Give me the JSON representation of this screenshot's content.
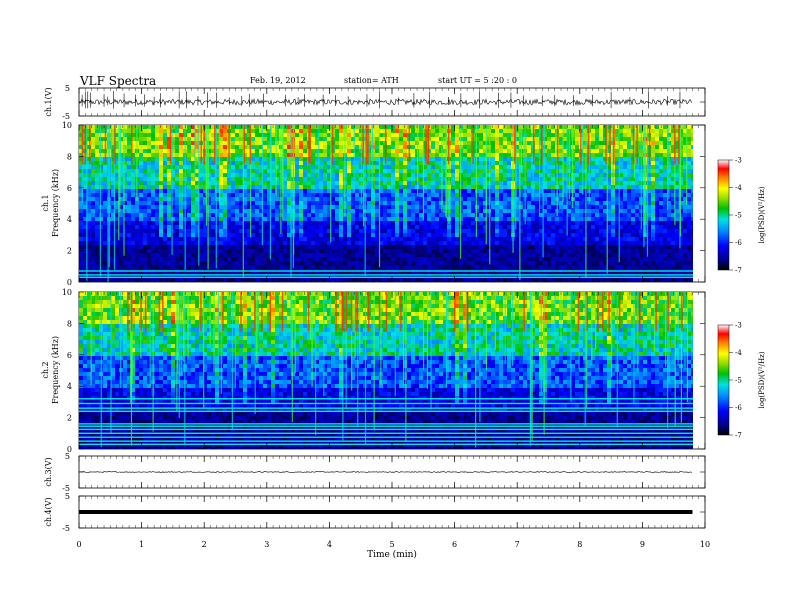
{
  "header": {
    "title": "VLF  Spectra",
    "date": "Feb. 19, 2012",
    "station": "station= ATH",
    "start": "start  UT =   5  :20 : 0"
  },
  "chart_data": [
    {
      "type": "line",
      "name": "waveform-ch1",
      "ylabel": "ch.1(V)",
      "yticks": [
        "5",
        "-5"
      ],
      "ylim": [
        -5,
        5
      ],
      "baseline": 0,
      "color": "#000000",
      "spikes": [
        0.05,
        0.1,
        0.14,
        0.18,
        0.4,
        0.46,
        0.55,
        0.72,
        0.9,
        1.05,
        1.2,
        1.3,
        1.6,
        1.72,
        1.9,
        2.05,
        2.2,
        2.4,
        2.6,
        2.72,
        2.95,
        3.3,
        3.5,
        3.6,
        3.9,
        4.1,
        4.3,
        4.6,
        4.8,
        5.1,
        5.35,
        5.6,
        5.9,
        6.1,
        6.4,
        6.7,
        6.9,
        7.1,
        7.4,
        7.6,
        7.9,
        8.2,
        8.5,
        8.8,
        9.1,
        9.4,
        9.6
      ]
    },
    {
      "type": "heatmap",
      "name": "spectrogram-ch1",
      "ylabel": "ch.1\nFrequency (kHz)",
      "yticks": [
        "0",
        "2",
        "4",
        "6",
        "8",
        "10"
      ],
      "ylim": [
        0,
        10
      ],
      "colorbar_label": "log(PSD)(V²/Hz)",
      "colorbar_ticks": [
        "-3",
        "-4",
        "-5",
        "-6",
        "-7"
      ],
      "colorbar_range": [
        -7,
        -3
      ],
      "lines_khz": [
        0.3,
        0.45,
        0.7
      ]
    },
    {
      "type": "heatmap",
      "name": "spectrogram-ch2",
      "ylabel": "ch.2\nFrequency (kHz)",
      "yticks": [
        "0",
        "2",
        "4",
        "6",
        "8",
        "10"
      ],
      "ylim": [
        0,
        10
      ],
      "colorbar_label": "log(PSD)(V²/Hz)",
      "colorbar_ticks": [
        "-3",
        "-4",
        "-5",
        "-6",
        "-7"
      ],
      "colorbar_range": [
        -7,
        -3
      ],
      "lines_khz": [
        0.3,
        0.5,
        0.75,
        1.0,
        1.25,
        1.45,
        1.6,
        2.4,
        2.6,
        2.9,
        3.2
      ]
    },
    {
      "type": "line",
      "name": "waveform-ch3",
      "ylabel": "ch.3(V)",
      "yticks": [
        "5",
        "-5"
      ],
      "ylim": [
        -5,
        5
      ],
      "baseline": 0,
      "color": "#000000"
    },
    {
      "type": "line",
      "name": "waveform-ch4",
      "ylabel": "ch.4(V)",
      "yticks": [
        "5",
        "-5"
      ],
      "ylim": [
        -5,
        5
      ],
      "baseline": 0,
      "color": "#000000"
    }
  ],
  "x_axis": {
    "xlabel": "Time  (min)",
    "xlim": [
      0,
      10
    ],
    "data_end": 9.8,
    "ticks": [
      "0",
      "1",
      "2",
      "3",
      "4",
      "5",
      "6",
      "7",
      "8",
      "9",
      "10"
    ]
  }
}
